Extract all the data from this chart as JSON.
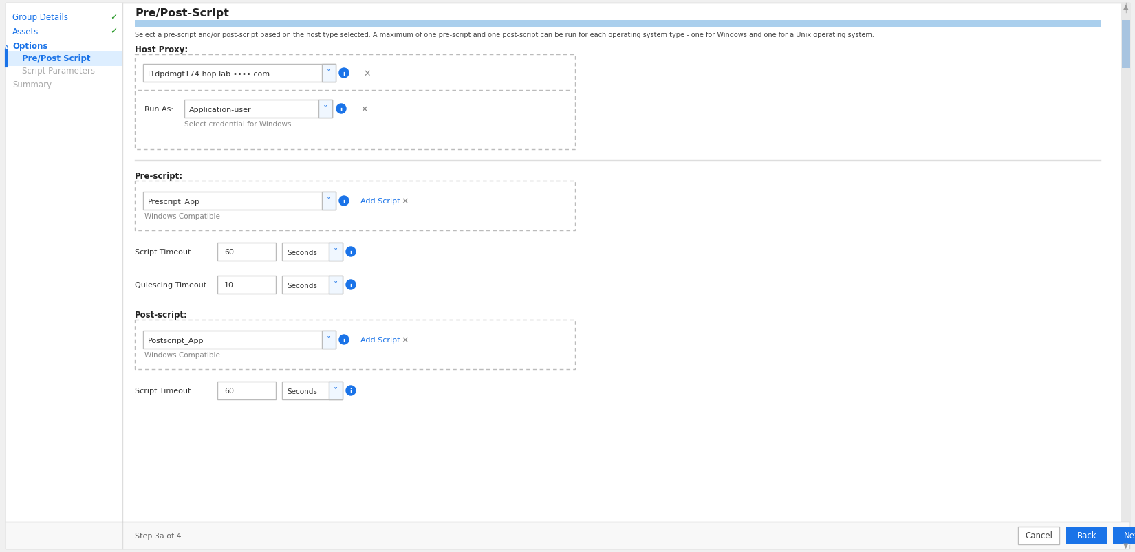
{
  "bg_color": "#f0f0f0",
  "panel_bg": "#ffffff",
  "sidebar_bg": "#ffffff",
  "title": "Pre/Post-Script",
  "title_color": "#222222",
  "title_fontsize": 11.5,
  "description": "Select a pre-script and/or post-script based on the host type selected. A maximum of one pre-script and one post-script can be run for each operating system type - one for Windows and one for a Unix operating system.",
  "desc_color": "#444444",
  "desc_fontsize": 7.0,
  "nav_items": [
    {
      "label": "Group Details",
      "color": "#1a73e8",
      "check": true,
      "bold": false,
      "indent": 0
    },
    {
      "label": "Assets",
      "color": "#1a73e8",
      "check": true,
      "bold": false,
      "indent": 0
    },
    {
      "label": "Options",
      "color": "#1a73e8",
      "check": false,
      "bold": true,
      "indent": 0,
      "caret": true
    },
    {
      "label": "Pre/Post Script",
      "color": "#1a73e8",
      "check": false,
      "bold": true,
      "indent": 14,
      "active": true
    },
    {
      "label": "Script Parameters",
      "color": "#aaaaaa",
      "check": false,
      "bold": false,
      "indent": 14
    },
    {
      "label": "Summary",
      "color": "#aaaaaa",
      "check": false,
      "bold": false,
      "indent": 0
    }
  ],
  "sidebar_active_bg": "#ddeeff",
  "sidebar_border_color": "#1a73e8",
  "progress_bar_color": "#aacfed",
  "host_proxy_label": "Host Proxy:",
  "host_proxy_value": "l1dpdmgt174.hop.lab.••••.com",
  "run_as_label": "Run As:",
  "run_as_value": "Application-user",
  "run_as_hint": "Select credential for Windows",
  "pre_script_label": "Pre-script:",
  "pre_script_value": "Prescript_App",
  "pre_script_compat": "Windows Compatible",
  "script_timeout_label": "Script Timeout",
  "script_timeout_value": "60",
  "script_timeout_unit": "Seconds",
  "quiescing_timeout_label": "Quiescing Timeout",
  "quiescing_timeout_value": "10",
  "quiescing_timeout_unit": "Seconds",
  "post_script_label": "Post-script:",
  "post_script_value": "Postscript_App",
  "post_script_compat": "Windows Compatible",
  "post_script_timeout_label": "Script Timeout",
  "post_script_timeout_value": "60",
  "post_script_timeout_unit": "Seconds",
  "add_script_color": "#1a73e8",
  "info_color": "#1a73e8",
  "dropdown_color": "#1a73e8",
  "x_color": "#888888",
  "dash_color": "#bbbbbb",
  "sep_color": "#dddddd",
  "footer_text": "Step 3a of 4",
  "footer_text_color": "#666666",
  "cancel_text": "Cancel",
  "back_text": "Back",
  "next_text": "Next",
  "btn_blue": "#1a73e8",
  "btn_text": "#ffffff",
  "cancel_text_color": "#444444",
  "scroll_track": "#e8e8e8",
  "scroll_thumb": "#a8c4e0",
  "outer_border": "#cccccc",
  "inner_border": "#dddddd"
}
